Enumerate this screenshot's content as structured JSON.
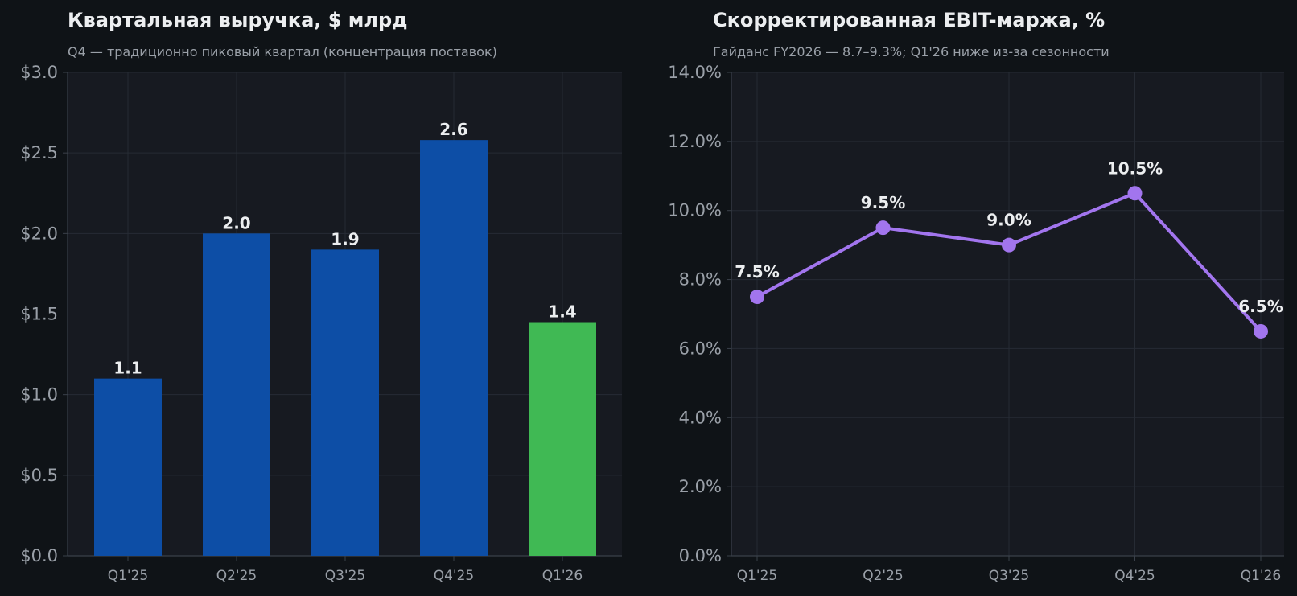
{
  "chart_data": [
    {
      "type": "bar",
      "title": "Квартальная выручка, $ млрд",
      "subtitle": "Q4 — традиционно пиковый квартал (концентрация поставок)",
      "categories": [
        "Q1'25",
        "Q2'25",
        "Q3'25",
        "Q4'25",
        "Q1'26"
      ],
      "values": [
        1.1,
        2.0,
        1.9,
        2.58,
        1.45
      ],
      "value_labels": [
        "1.1",
        "2.0",
        "1.9",
        "2.6",
        "1.4"
      ],
      "bar_colors": [
        "#0d4ea6",
        "#0d4ea6",
        "#0d4ea6",
        "#0d4ea6",
        "#40b954"
      ],
      "ylim": [
        0,
        3.0
      ],
      "yticks": [
        0,
        0.5,
        1.0,
        1.5,
        2.0,
        2.5,
        3.0
      ],
      "ytick_labels": [
        "$0.0",
        "$0.5",
        "$1.0",
        "$1.5",
        "$2.0",
        "$2.5",
        "$3.0"
      ],
      "grid": true
    },
    {
      "type": "line",
      "title": "Скорректированная EBIT-маржа, %",
      "subtitle": "Гайданс FY2026 — 8.7–9.3%; Q1'26 ниже из-за сезонности",
      "categories": [
        "Q1'25",
        "Q2'25",
        "Q3'25",
        "Q4'25",
        "Q1'26"
      ],
      "values": [
        7.5,
        9.5,
        9.0,
        10.5,
        6.5
      ],
      "value_labels": [
        "7.5%",
        "9.5%",
        "9.0%",
        "10.5%",
        "6.5%"
      ],
      "line_color": "#a275ee",
      "ylim": [
        0,
        14.0
      ],
      "yticks": [
        0,
        2,
        4,
        6,
        8,
        10,
        12,
        14
      ],
      "ytick_labels": [
        "0.0%",
        "2.0%",
        "4.0%",
        "6.0%",
        "8.0%",
        "10.0%",
        "12.0%",
        "14.0%"
      ],
      "grid": true
    }
  ]
}
